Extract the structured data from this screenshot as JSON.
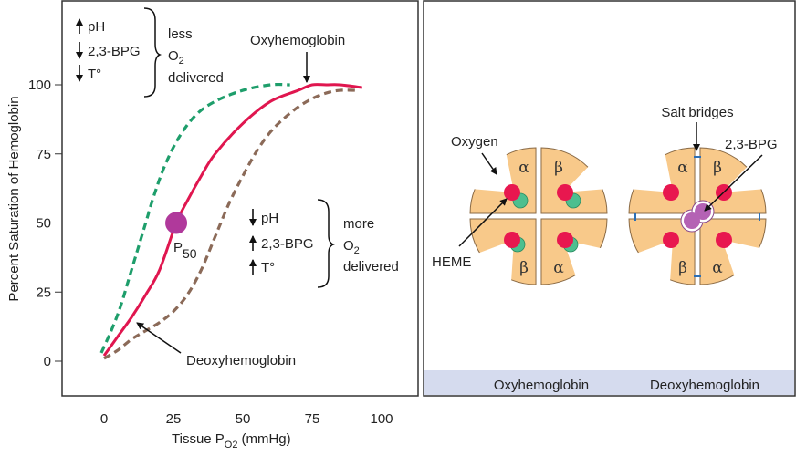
{
  "chart_data": {
    "type": "line",
    "xlabel": "Tissue P",
    "xlabel_sub": "O2",
    "xlabel_unit": "(mmHg)",
    "ylabel": "Percent Saturation of Hemoglobin",
    "xlim": [
      -15,
      115
    ],
    "ylim": [
      -15,
      125
    ],
    "x_ticks": [
      "0",
      "25",
      "50",
      "75",
      "100"
    ],
    "y_ticks": [
      "0",
      "25",
      "50",
      "75",
      "100"
    ],
    "grid": false,
    "series": [
      {
        "style": "solid",
        "color": "#e0164f",
        "x": [
          0,
          5,
          10,
          15,
          20,
          26,
          30,
          35,
          40,
          50,
          60,
          70,
          75,
          80,
          85,
          93
        ],
        "y": [
          2,
          9,
          16,
          24,
          33,
          50,
          58,
          67,
          75,
          86,
          94,
          98,
          100,
          100,
          100,
          99
        ]
      },
      {
        "style": "dashed",
        "color": "#1e9e6b",
        "x": [
          -1,
          3,
          6,
          9,
          12,
          15,
          18,
          22,
          27,
          33,
          40,
          50,
          60,
          67
        ],
        "y": [
          3,
          12,
          20,
          30,
          40,
          50,
          60,
          71,
          81,
          89,
          94,
          98,
          100,
          100
        ]
      },
      {
        "style": "dashed",
        "color": "#8b6a58",
        "x": [
          0,
          5,
          10,
          15,
          20,
          25,
          30,
          35,
          40,
          45,
          50,
          55,
          60,
          65,
          70,
          75,
          80,
          85,
          92
        ],
        "y": [
          1,
          4,
          8,
          11,
          14,
          18,
          24,
          33,
          45,
          57,
          67,
          76,
          83,
          88,
          92,
          95,
          97,
          98,
          98
        ]
      }
    ],
    "p50": {
      "x": 26,
      "y": 50,
      "label": "P",
      "label_sub": "50",
      "color": "#b0399b"
    },
    "annotations": {
      "oxy_label": "Oxyhemoglobin",
      "deoxy_label": "Deoxyhemoglobin",
      "left_shift": {
        "items": [
          {
            "arrow": "up",
            "text": "pH"
          },
          {
            "arrow": "down",
            "text": "2,3-BPG"
          },
          {
            "arrow": "down",
            "text": "T°"
          }
        ],
        "result_line1": "less",
        "result_o": "O",
        "result_sub": "2",
        "result_line3": "delivered"
      },
      "right_shift": {
        "items": [
          {
            "arrow": "down",
            "text": "pH"
          },
          {
            "arrow": "up",
            "text": "2,3-BPG"
          },
          {
            "arrow": "up",
            "text": "T°"
          }
        ],
        "result_line1": "more",
        "result_o": "O",
        "result_sub": "2",
        "result_line3": "delivered"
      }
    }
  },
  "diagram": {
    "labels": {
      "oxygen": "Oxygen",
      "heme": "HEME",
      "salt_bridges": "Salt bridges",
      "bpg": "2,3-BPG"
    },
    "subunits": {
      "alpha": "α",
      "beta": "β"
    },
    "captions": {
      "oxy": "Oxyhemoglobin",
      "deoxy": "Deoxyhemoglobin"
    },
    "colors": {
      "subunit": "#f8c98a",
      "heme": "#e8174f",
      "oxygen": "#4dbf8f",
      "bpg": "#b462b4",
      "salt_bridge": "#2c6fb5",
      "band": "#d5dbee"
    }
  }
}
